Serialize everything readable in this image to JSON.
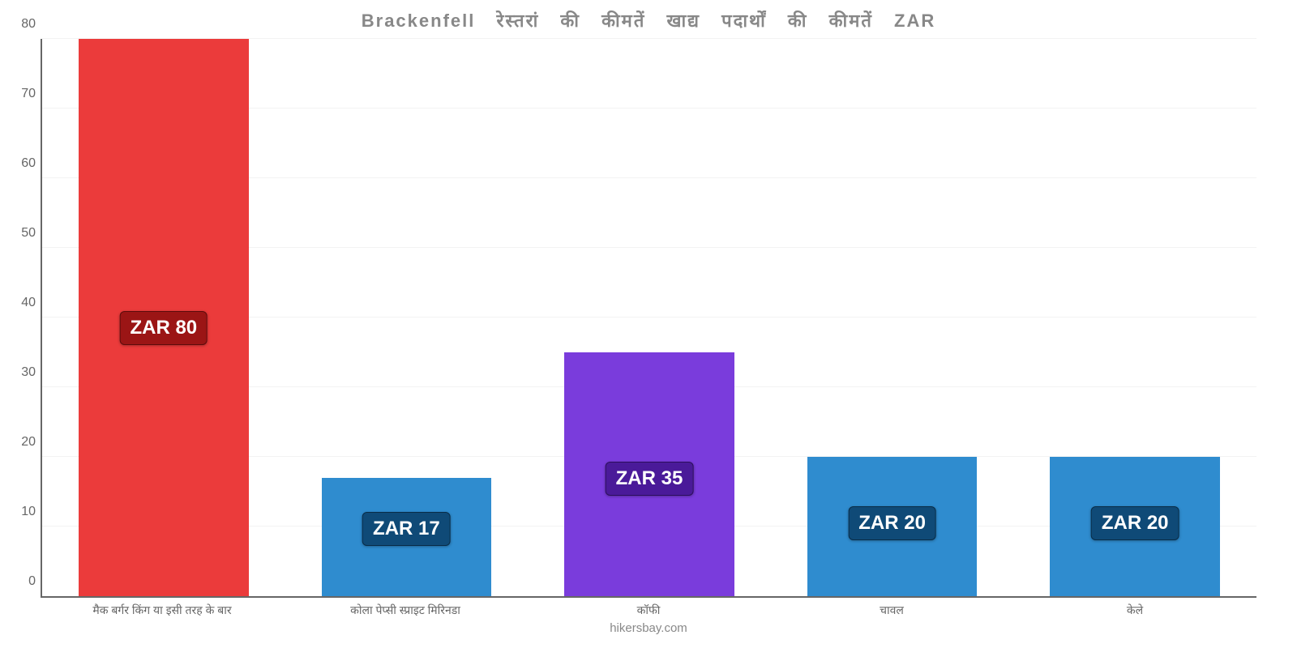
{
  "chart": {
    "type": "bar",
    "title": "Brackenfell रेस्तरां की कीमतें खाद्य पदार्थों की कीमतें ZAR",
    "title_fontsize": 22,
    "title_color": "#888888",
    "credit": "hikersbay.com",
    "credit_fontsize": 15,
    "credit_color": "#888888",
    "background_color": "#ffffff",
    "axis_color": "#666666",
    "grid_color": "#f3f3f3",
    "ylim": [
      0,
      80
    ],
    "ytick_step": 10,
    "yticks": [
      0,
      10,
      20,
      30,
      40,
      50,
      60,
      70,
      80
    ],
    "ytick_fontsize": 16,
    "xlabel_fontsize": 14,
    "bar_width_pct": 70,
    "value_label_fontsize": 24,
    "categories": [
      "मैक बर्गर किंग या इसी तरह के बार",
      "कोला पेप्सी स्प्राइट मिरिनडा",
      "कॉफी",
      "चावल",
      "केले"
    ],
    "values": [
      80,
      17,
      35,
      20,
      20
    ],
    "value_labels": [
      "ZAR 80",
      "ZAR 17",
      "ZAR 35",
      "ZAR 20",
      "ZAR 20"
    ],
    "bar_colors": [
      "#eb3b3b",
      "#2f8ccf",
      "#7a3cdc",
      "#2f8ccf",
      "#2f8ccf"
    ],
    "badge_colors": [
      "#9b1515",
      "#0f4a77",
      "#4a1a99",
      "#0f4a77",
      "#0f4a77"
    ],
    "badge_bottom_pct": [
      45,
      9,
      18,
      10,
      10
    ]
  }
}
